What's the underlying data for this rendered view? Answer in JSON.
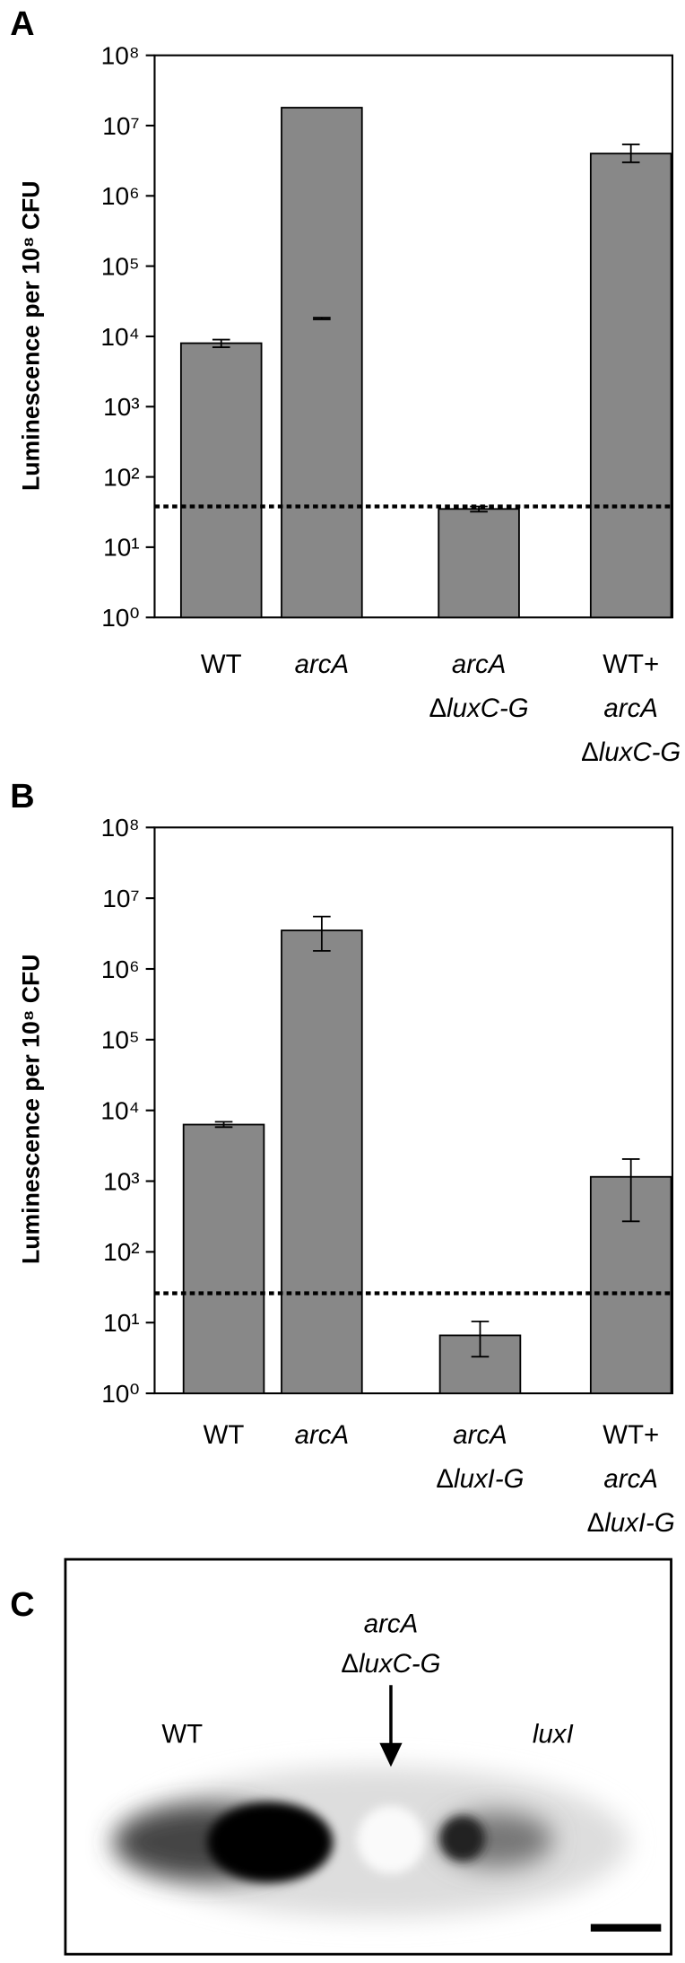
{
  "chart_data": [
    {
      "type": "bar",
      "panel": "A",
      "ylabel": "Luminescence per 10⁸ CFU",
      "log_scale": true,
      "color": "#888888",
      "categories": [
        [
          "WT"
        ],
        [
          "arcA"
        ],
        [
          "arcA",
          "ΔluxC-G"
        ],
        [
          "WT+",
          "arcA",
          "ΔluxC-G"
        ]
      ],
      "values": [
        8000,
        18000000,
        35,
        4000000
      ],
      "errors": [
        [
          7000,
          9000
        ],
        [
          17500,
          18500
        ],
        [
          32,
          38
        ],
        [
          3000000,
          5400000
        ]
      ],
      "threshold": 38,
      "ylim": [
        1,
        100000000
      ],
      "yticks": [
        {
          "value": 1,
          "label": "10⁰"
        },
        {
          "value": 10,
          "label": "10¹"
        },
        {
          "value": 100,
          "label": "10²"
        },
        {
          "value": 1000,
          "label": "10³"
        },
        {
          "value": 10000,
          "label": "10⁴"
        },
        {
          "value": 100000,
          "label": "10⁵"
        },
        {
          "value": 1000000,
          "label": "10⁶"
        },
        {
          "value": 10000000,
          "label": "10⁷"
        },
        {
          "value": 100000000,
          "label": "10⁸"
        }
      ]
    },
    {
      "type": "bar",
      "panel": "B",
      "ylabel": "Luminescence per 10⁸ CFU",
      "log_scale": true,
      "color": "#888888",
      "categories": [
        [
          "WT"
        ],
        [
          "arcA"
        ],
        [
          "arcA",
          "ΔluxI-G"
        ],
        [
          "WT+",
          "arcA",
          "ΔluxI-G"
        ]
      ],
      "values": [
        6300,
        3500000,
        6.6,
        1150
      ],
      "errors": [
        [
          5800,
          6900
        ],
        [
          1800000,
          5500000
        ],
        [
          3.3,
          10.4
        ],
        [
          270,
          2050
        ]
      ],
      "threshold": 26,
      "ylim": [
        1,
        100000000
      ],
      "yticks": [
        {
          "value": 1,
          "label": "10⁰"
        },
        {
          "value": 10,
          "label": "10¹"
        },
        {
          "value": 100,
          "label": "10²"
        },
        {
          "value": 1000,
          "label": "10³"
        },
        {
          "value": 10000,
          "label": "10⁴"
        },
        {
          "value": 100000,
          "label": "10⁵"
        },
        {
          "value": 1000000,
          "label": "10⁶"
        },
        {
          "value": 10000000,
          "label": "10⁷"
        },
        {
          "value": 100000000,
          "label": "10⁸"
        }
      ]
    }
  ],
  "panel_c": {
    "panel": "C",
    "labels": [
      "arcA",
      "ΔluxC-G",
      "WT",
      "luxI"
    ]
  }
}
